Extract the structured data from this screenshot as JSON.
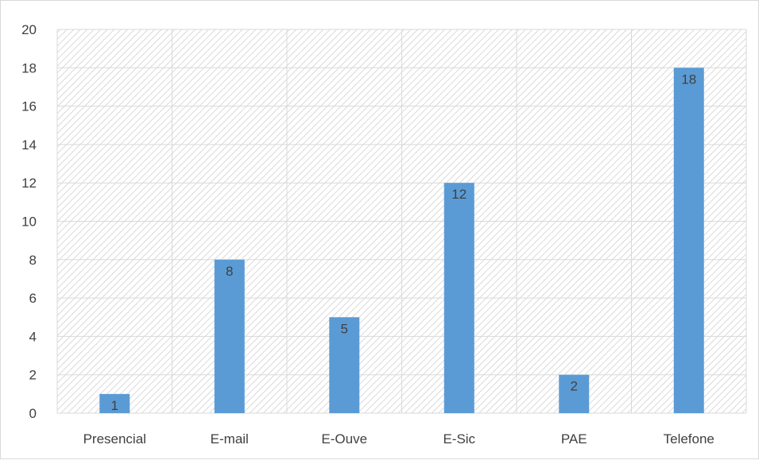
{
  "chart_data": {
    "type": "bar",
    "categories": [
      "Presencial",
      "E-mail",
      "E-Ouve",
      "E-Sic",
      "PAE",
      "Telefone"
    ],
    "values": [
      1,
      8,
      5,
      12,
      2,
      18
    ],
    "data_labels": [
      "1",
      "8",
      "5",
      "12",
      "2",
      "18"
    ],
    "y_ticks": [
      "0",
      "2",
      "4",
      "6",
      "8",
      "10",
      "12",
      "14",
      "16",
      "18",
      "20"
    ],
    "ylim": [
      0,
      20
    ],
    "ytick_step": 2,
    "grid": true,
    "plot_background": "hatched",
    "legend": "none",
    "colors": {
      "bar": "#5b9bd5",
      "grid": "#d9d9d9",
      "hatch": "#d0d0d0",
      "text": "#404040"
    }
  }
}
